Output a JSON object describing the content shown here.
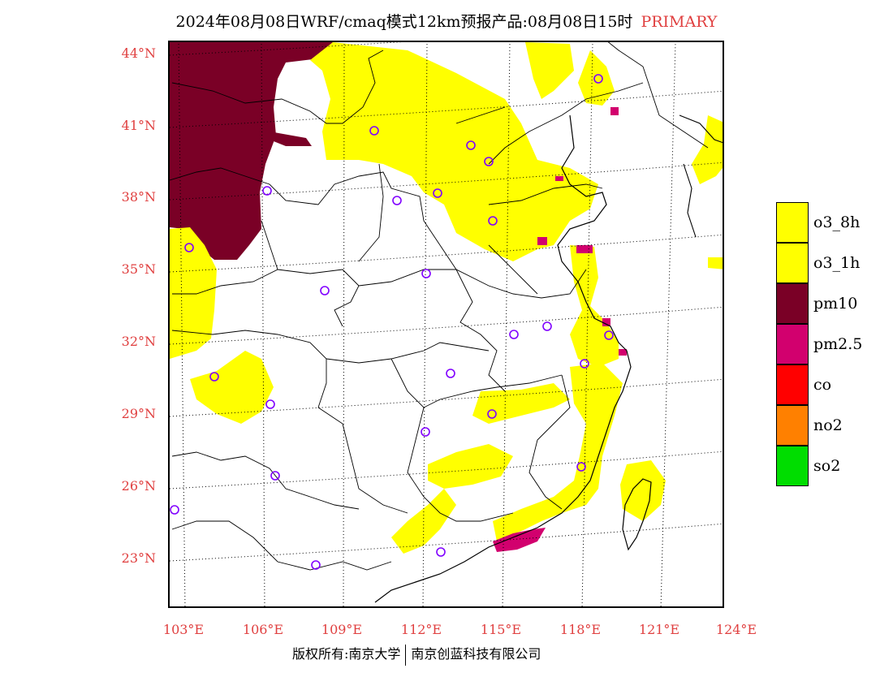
{
  "title": {
    "main": "2024年08月08日WRF/cmaq模式12km预报产品:08月08日15时",
    "tag": "PRIMARY"
  },
  "axes": {
    "lat_labels": [
      "44°N",
      "41°N",
      "38°N",
      "35°N",
      "32°N",
      "29°N",
      "26°N",
      "23°N"
    ],
    "lon_labels": [
      "103°E",
      "106°E",
      "109°E",
      "112°E",
      "115°E",
      "118°E",
      "121°E",
      "124°E"
    ]
  },
  "legend": [
    {
      "label": "o3_8h",
      "color": "#ffff00"
    },
    {
      "label": "o3_1h",
      "color": "#ffff00"
    },
    {
      "label": "pm10",
      "color": "#7a0026"
    },
    {
      "label": "pm2.5",
      "color": "#d2006e"
    },
    {
      "label": "co",
      "color": "#ff0000"
    },
    {
      "label": "no2",
      "color": "#ff8000"
    },
    {
      "label": "so2",
      "color": "#00dd00"
    }
  ],
  "footer": {
    "left": "版权所有:南京大学",
    "right": "南京创蓝科技有限公司"
  },
  "colors": {
    "label_red": "#e04040",
    "o3": "#ffff00",
    "pm10": "#7a0026",
    "pm25": "#d2006e",
    "station_marker": "#8000ff"
  }
}
